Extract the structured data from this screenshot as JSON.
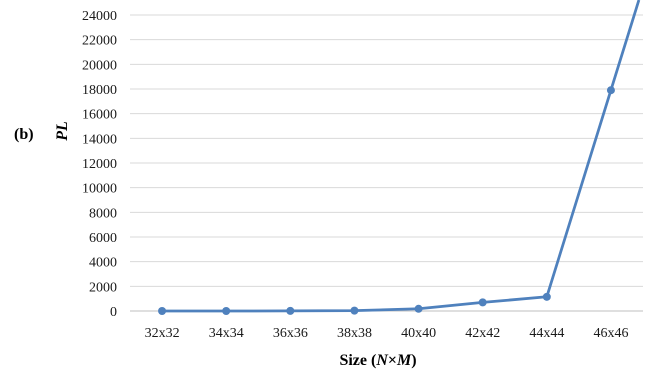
{
  "chart_data": {
    "type": "line",
    "panel_label": "(b)",
    "categories": [
      "32x32",
      "34x34",
      "36x36",
      "38x38",
      "40x40",
      "42x42",
      "44x44",
      "46x46"
    ],
    "series": [
      {
        "values": [
          0,
          0,
          10,
          30,
          180,
          700,
          1150,
          17900
        ],
        "extends_above_ylim": true
      }
    ],
    "ylabel": "PL",
    "xlabel": {
      "prefix": "Size (",
      "n": "N",
      "times": "×",
      "m": "M",
      "suffix": ")"
    },
    "ylim": [
      0,
      24000
    ],
    "yticks": [
      0,
      2000,
      4000,
      6000,
      8000,
      10000,
      12000,
      14000,
      16000,
      18000,
      20000,
      22000,
      24000
    ],
    "grid": true,
    "legend": "none",
    "color": "#4f81bd"
  }
}
